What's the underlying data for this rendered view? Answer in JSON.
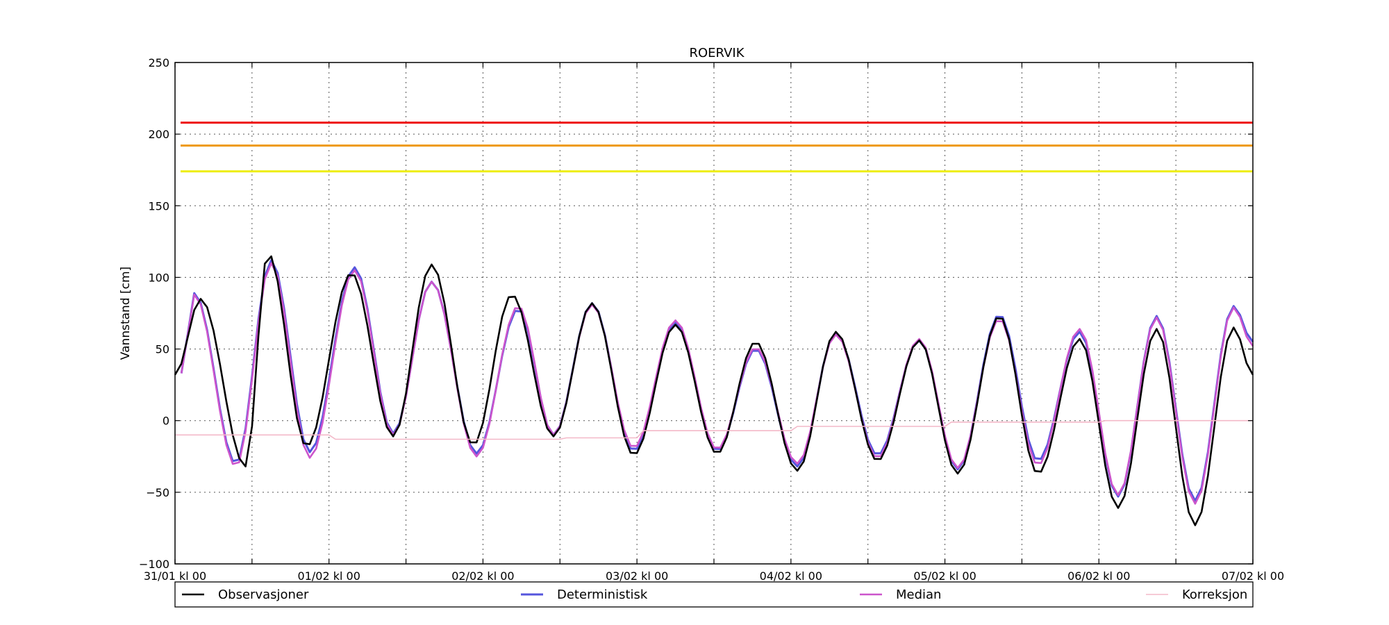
{
  "chart_data": {
    "type": "line",
    "title": "ROERVIK",
    "ylabel": "Vannstand [cm]",
    "xlabel": "",
    "ylim": [
      -100,
      250
    ],
    "xlim": [
      0,
      168
    ],
    "grid": true,
    "legend_position": "bottom",
    "y_ticks": [
      250,
      200,
      150,
      100,
      50,
      0,
      -50,
      -100
    ],
    "y_tick_labels": [
      "250",
      "200",
      "150",
      "100",
      "50",
      "0",
      "−50",
      "−100"
    ],
    "x_ticks": [
      0,
      12,
      24,
      36,
      48,
      60,
      72,
      84,
      96,
      108,
      120,
      132,
      144,
      156,
      168
    ],
    "x_tick_labels": [
      {
        "x": 0,
        "label": "31/01 kl 00"
      },
      {
        "x": 24,
        "label": "01/02 kl 00"
      },
      {
        "x": 48,
        "label": "02/02 kl 00"
      },
      {
        "x": 72,
        "label": "03/02 kl 00"
      },
      {
        "x": 96,
        "label": "04/02 kl 00"
      },
      {
        "x": 120,
        "label": "05/02 kl 00"
      },
      {
        "x": 144,
        "label": "06/02 kl 00"
      },
      {
        "x": 168,
        "label": "07/02 kl 00"
      }
    ],
    "reference_lines": [
      {
        "value": 208,
        "color": "#ee1111"
      },
      {
        "value": 192,
        "color": "#ee9911"
      },
      {
        "value": 174,
        "color": "#eeee11"
      }
    ],
    "series": [
      {
        "name": "Observasjoner",
        "color": "#000000",
        "points": [
          [
            0,
            32
          ],
          [
            4,
            85
          ],
          [
            11,
            -32
          ],
          [
            14.5,
            117
          ],
          [
            20.5,
            -18
          ],
          [
            27.5,
            103
          ],
          [
            34,
            -11
          ],
          [
            40,
            109
          ],
          [
            46.5,
            -17
          ],
          [
            52.5,
            88
          ],
          [
            59,
            -11
          ],
          [
            65,
            82
          ],
          [
            71.5,
            -24
          ],
          [
            78,
            67
          ],
          [
            84.5,
            -23
          ],
          [
            90.5,
            55
          ],
          [
            97,
            -35
          ],
          [
            103,
            62
          ],
          [
            109.5,
            -28
          ],
          [
            116,
            56
          ],
          [
            122,
            -37
          ],
          [
            128.5,
            73
          ],
          [
            134.5,
            -37
          ],
          [
            141,
            57
          ],
          [
            147,
            -61
          ],
          [
            153,
            64
          ],
          [
            159,
            -73
          ],
          [
            165,
            65
          ],
          [
            168,
            32
          ]
        ]
      },
      {
        "name": "Deterministisk",
        "color": "#5555dd",
        "points": [
          [
            1,
            33
          ],
          [
            3,
            89
          ],
          [
            9.5,
            -30
          ],
          [
            15,
            112
          ],
          [
            21,
            -22
          ],
          [
            28,
            107
          ],
          [
            34,
            -9
          ],
          [
            40,
            97
          ],
          [
            47,
            -23
          ],
          [
            53.5,
            78
          ],
          [
            59,
            -10
          ],
          [
            65,
            82
          ],
          [
            71.5,
            -21
          ],
          [
            78,
            69
          ],
          [
            84.5,
            -21
          ],
          [
            90.5,
            50
          ],
          [
            97,
            -32
          ],
          [
            103,
            61
          ],
          [
            109.5,
            -24
          ],
          [
            116,
            56
          ],
          [
            122,
            -34
          ],
          [
            128.5,
            74
          ],
          [
            134.5,
            -28
          ],
          [
            141,
            62
          ],
          [
            147,
            -53
          ],
          [
            153,
            73
          ],
          [
            159,
            -56
          ],
          [
            165,
            80
          ],
          [
            168,
            55
          ]
        ]
      },
      {
        "name": "Median",
        "color": "#cc55cc",
        "points": [
          [
            1,
            33
          ],
          [
            3,
            88
          ],
          [
            9.5,
            -32
          ],
          [
            15,
            110
          ],
          [
            21,
            -26
          ],
          [
            28,
            105
          ],
          [
            34,
            -10
          ],
          [
            40,
            97
          ],
          [
            47,
            -25
          ],
          [
            53.5,
            80
          ],
          [
            59,
            -10
          ],
          [
            65,
            81
          ],
          [
            71.5,
            -19
          ],
          [
            78,
            70
          ],
          [
            84.5,
            -20
          ],
          [
            90.5,
            51
          ],
          [
            97,
            -30
          ],
          [
            103,
            60
          ],
          [
            109.5,
            -26
          ],
          [
            116,
            57
          ],
          [
            122,
            -33
          ],
          [
            128.5,
            71
          ],
          [
            134.5,
            -31
          ],
          [
            141,
            64
          ],
          [
            147,
            -52
          ],
          [
            153,
            72
          ],
          [
            159,
            -58
          ],
          [
            165,
            79
          ],
          [
            168,
            52
          ]
        ]
      },
      {
        "name": "Korreksjon",
        "color": "#f3b8c8",
        "points": [
          [
            0,
            -10
          ],
          [
            24,
            -10
          ],
          [
            24.7,
            -13
          ],
          [
            60,
            -13
          ],
          [
            60.5,
            -12
          ],
          [
            72,
            -12
          ],
          [
            72.5,
            -7
          ],
          [
            96,
            -7
          ],
          [
            96.5,
            -4
          ],
          [
            120,
            -4
          ],
          [
            121,
            -1
          ],
          [
            144,
            -1
          ],
          [
            144.5,
            0
          ],
          [
            168,
            0
          ]
        ]
      }
    ]
  }
}
